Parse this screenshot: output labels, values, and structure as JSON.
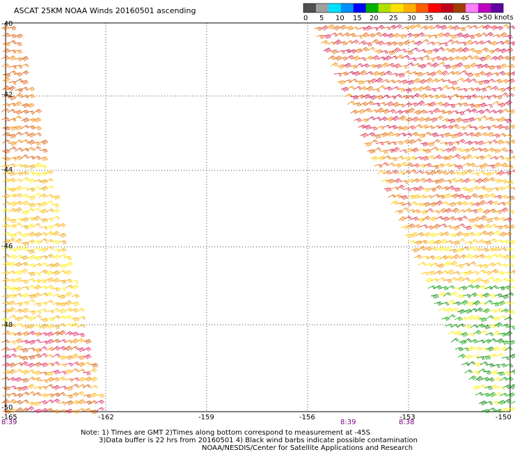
{
  "title": "ASCAT 25KM NOAA Winds 20160501 ascending",
  "legend": {
    "unit_label": ">50 knots",
    "tick_labels": [
      "0",
      "5",
      "10",
      "15",
      "20",
      "25",
      "30",
      "35",
      "40",
      "45"
    ],
    "colors": [
      "#505050",
      "#a0a0a0",
      "#00e0ff",
      "#0090ff",
      "#0000ff",
      "#00b000",
      "#b0e000",
      "#ffe000",
      "#ffb000",
      "#ff6000",
      "#ff0000",
      "#c00020",
      "#a04000",
      "#ff80ff",
      "#c000c0",
      "#6000a0"
    ]
  },
  "axes": {
    "lat_labels": [
      "-40",
      "-42",
      "-44",
      "-46",
      "-48",
      "-50"
    ],
    "lon_labels": [
      "-165",
      "-162",
      "-159",
      "-156",
      "-153",
      "-150"
    ]
  },
  "time_labels": [
    "8:39",
    "8:39",
    "8:38"
  ],
  "notes": {
    "line1": "Note: 1) Times are GMT 2)Times along bottom correspond to measurement at -45S",
    "line2": "3)Data buffer is 22 hrs from 20160501 4) Black wind barbs indicate possible contamination",
    "line3": "NOAA/NESDIS/Center for Satellite Applications and Research"
  },
  "barb_colors": {
    "left_swath": [
      "#e05a00",
      "#f08000",
      "#ffb000",
      "#ffd000",
      "#ffee00",
      "#e8a000",
      "#d05000",
      "#e02060"
    ],
    "right_swath": [
      "#d01050",
      "#e03040",
      "#e06000",
      "#f08800",
      "#ffc000",
      "#ffee00",
      "#00a000",
      "#008000"
    ]
  }
}
